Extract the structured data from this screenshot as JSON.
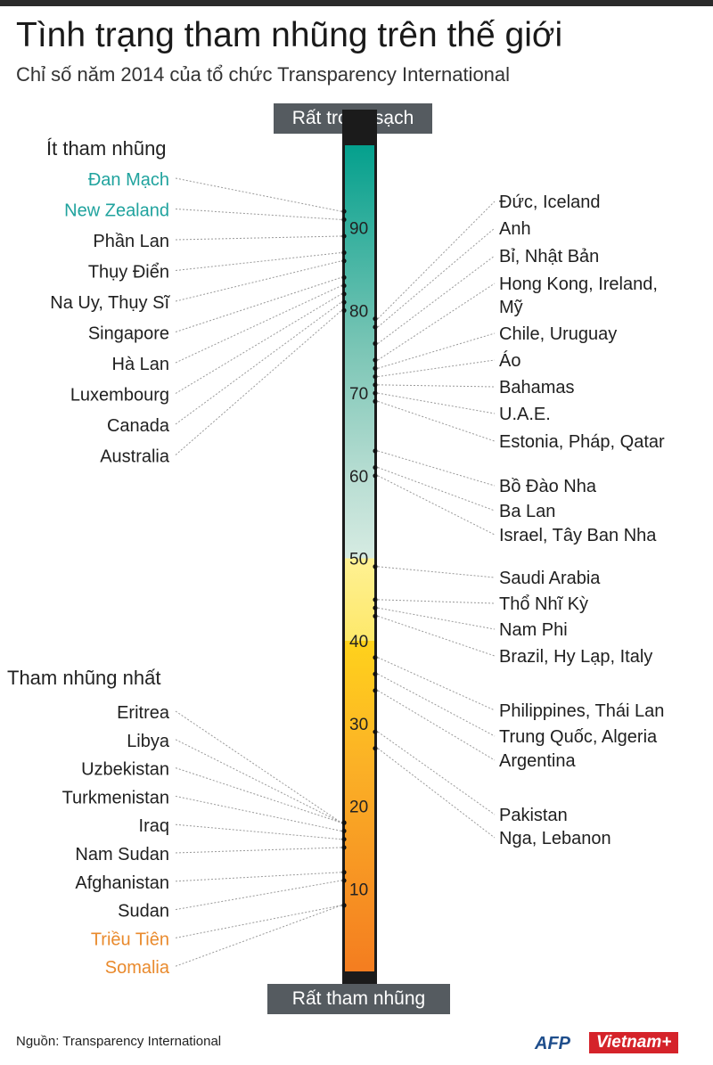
{
  "title": "Tình trạng tham nhũng trên thế giới",
  "subtitle": "Chỉ số năm 2014 của tổ chức  Transparency International",
  "scale_top_label": "Rất trong sạch",
  "scale_bottom_label": "Rất tham nhũng",
  "least_corrupt_heading": "Ít tham nhũng",
  "most_corrupt_heading": "Tham nhũng nhất",
  "source": "Nguồn: Transparency International",
  "logo_afp": "AFP",
  "logo_vietnam": "Vietnam+",
  "colors": {
    "least_highlight": "#20a39e",
    "most_highlight": "#e98a2d",
    "leader": "#9a9a9a",
    "dot": "#111111"
  },
  "chart_data": {
    "type": "scale",
    "ylim": [
      0,
      100
    ],
    "ticks": [
      10,
      20,
      30,
      40,
      50,
      60,
      70,
      80,
      90
    ],
    "gradient": [
      {
        "score": 100,
        "color": "#04a08d"
      },
      {
        "score": 75,
        "color": "#7cc6b6"
      },
      {
        "score": 60,
        "color": "#b7ddd2"
      },
      {
        "score": 50,
        "color": "#d6ebe2"
      },
      {
        "score": 50,
        "color": "#fff193"
      },
      {
        "score": 40,
        "color": "#fde86a"
      },
      {
        "score": 40,
        "color": "#ffd21c"
      },
      {
        "score": 25,
        "color": "#fbb126"
      },
      {
        "score": 0,
        "color": "#f47d20"
      }
    ],
    "left_entries": [
      {
        "label": "Đan Mạch",
        "score": 92,
        "highlight": "least"
      },
      {
        "label": "New Zealand",
        "score": 91,
        "highlight": "least"
      },
      {
        "label": "Phần Lan",
        "score": 89
      },
      {
        "label": "Thụy Điển",
        "score": 87
      },
      {
        "label": "Na Uy, Thụy Sĩ",
        "score": 86
      },
      {
        "label": "Singapore",
        "score": 84
      },
      {
        "label": "Hà Lan",
        "score": 83
      },
      {
        "label": "Luxembourg",
        "score": 82
      },
      {
        "label": "Canada",
        "score": 81
      },
      {
        "label": "Australia",
        "score": 80
      },
      {
        "label": "Eritrea",
        "score": 18
      },
      {
        "label": "Libya",
        "score": 18
      },
      {
        "label": "Uzbekistan",
        "score": 18
      },
      {
        "label": "Turkmenistan",
        "score": 17
      },
      {
        "label": "Iraq",
        "score": 16
      },
      {
        "label": "Nam Sudan",
        "score": 15
      },
      {
        "label": "Afghanistan",
        "score": 12
      },
      {
        "label": "Sudan",
        "score": 11
      },
      {
        "label": "Triều Tiên",
        "score": 8,
        "highlight": "most"
      },
      {
        "label": "Somalia",
        "score": 8,
        "highlight": "most"
      }
    ],
    "right_entries": [
      {
        "label": "Đức, Iceland",
        "score": 79
      },
      {
        "label": "Anh",
        "score": 78
      },
      {
        "label": "Bỉ, Nhật Bản",
        "score": 76
      },
      {
        "label": "Hong Kong, Ireland,",
        "label2": "Mỹ",
        "score": 74
      },
      {
        "label": "Chile, Uruguay",
        "score": 73
      },
      {
        "label": "Áo",
        "score": 72
      },
      {
        "label": "Bahamas",
        "score": 71
      },
      {
        "label": "U.A.E.",
        "score": 70
      },
      {
        "label": "Estonia, Pháp, Qatar",
        "score": 69
      },
      {
        "label": "Bồ Đào Nha",
        "score": 63
      },
      {
        "label": "Ba Lan",
        "score": 61
      },
      {
        "label": "Israel, Tây Ban Nha",
        "score": 60
      },
      {
        "label": "Saudi Arabia",
        "score": 49
      },
      {
        "label": "Thổ Nhĩ Kỳ",
        "score": 45
      },
      {
        "label": "Nam Phi",
        "score": 44
      },
      {
        "label": "Brazil, Hy Lạp, Italy",
        "score": 43
      },
      {
        "label": "Philippines, Thái Lan",
        "score": 38
      },
      {
        "label": "Trung Quốc, Algeria",
        "score": 36
      },
      {
        "label": "Argentina",
        "score": 34
      },
      {
        "label": "Pakistan",
        "score": 29
      },
      {
        "label": "Nga, Lebanon",
        "score": 27
      }
    ]
  }
}
